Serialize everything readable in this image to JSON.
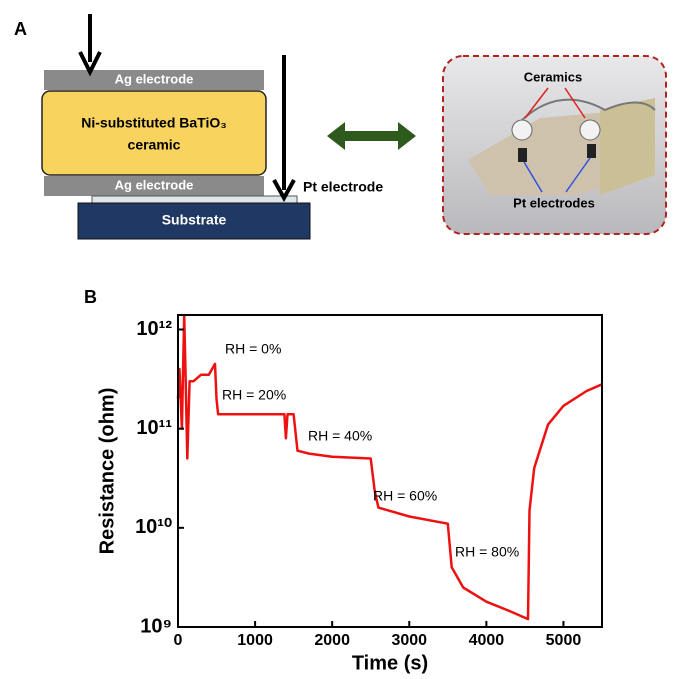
{
  "panel_a": {
    "label": "A",
    "top_electrode": "Ag electrode",
    "ceramic_line1": "Ni-substituted BaTiO₃",
    "ceramic_line2": "ceramic",
    "bottom_electrode": "Ag electrode",
    "pt_electrode": "Pt electrode",
    "substrate": "Substrate",
    "photo_ceramics": "Ceramics",
    "photo_pt": "Pt electrodes"
  },
  "panel_b": {
    "label": "B"
  },
  "chart_data": {
    "type": "line",
    "yscale": "log",
    "xlabel": "Time (s)",
    "ylabel": "Resistance (ohm)",
    "x": [
      0,
      20,
      50,
      80,
      100,
      120,
      150,
      200,
      300,
      400,
      480,
      500,
      520,
      800,
      1200,
      1380,
      1400,
      1420,
      1500,
      1550,
      1700,
      2000,
      2500,
      2550,
      2600,
      3000,
      3500,
      3550,
      3700,
      4000,
      4300,
      4540,
      4560,
      4620,
      4800,
      5000,
      5300,
      5500
    ],
    "series": [
      {
        "color": "#ee1111",
        "values": [
          200000000000,
          400000000000,
          100000000000,
          1400000000000,
          300000000000,
          50000000000,
          300000000000,
          300000000000,
          350000000000,
          350000000000,
          450000000000,
          200000000000,
          140000000000,
          140000000000,
          140000000000,
          140000000000,
          80000000000,
          140000000000,
          140000000000,
          60000000000,
          56000000000,
          52000000000,
          50000000000,
          24000000000,
          16000000000,
          13000000000,
          11000000000,
          4000000000,
          2500000000,
          1800000000,
          1450000000,
          1200000000,
          15000000000,
          40000000000,
          110000000000,
          170000000000,
          240000000000,
          280000000000
        ]
      }
    ],
    "xlim": [
      0,
      5500
    ],
    "xticks": [
      0,
      1000,
      2000,
      3000,
      4000,
      5000
    ],
    "ylim": [
      1000000000,
      1400000000000
    ],
    "yticks": [
      {
        "value": 1000000000,
        "label": "10⁹"
      },
      {
        "value": 10000000000,
        "label": "10¹⁰"
      },
      {
        "value": 100000000000,
        "label": "10¹¹"
      },
      {
        "value": 1000000000000,
        "label": "10¹²"
      }
    ],
    "annotations": [
      "RH = 0%",
      "RH = 20%",
      "RH = 40%",
      "RH = 60%",
      "RH = 80%"
    ]
  }
}
